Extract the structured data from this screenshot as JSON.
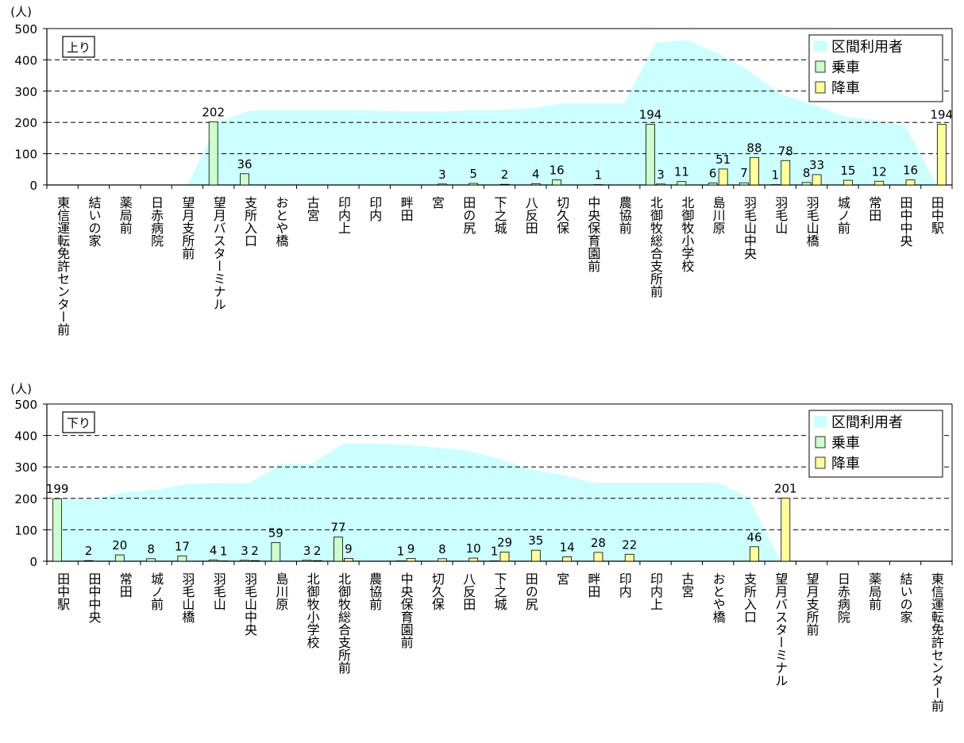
{
  "colors": {
    "area": "#ccffff",
    "boarding": "#ccffcc",
    "alighting": "#ffff99",
    "grid": "#000000"
  },
  "chart_data": [
    {
      "type": "bar",
      "direction_label": "上り",
      "unit_label": "(人)",
      "ylim": [
        0,
        500
      ],
      "yticks": [
        0,
        100,
        200,
        300,
        400,
        500
      ],
      "grid": "dashed",
      "legend_position": "top-right",
      "categories": [
        "東信運転免許センター前",
        "結いの家",
        "薬局前",
        "日赤病院",
        "望月支所前",
        "望月バスターミナル",
        "支所入口",
        "おとや橋",
        "古宮",
        "印内上",
        "印内",
        "畔田",
        "宮",
        "田の尻",
        "下之城",
        "八反田",
        "切久保",
        "中央保育園前",
        "農協前",
        "北御牧総合支所前",
        "北御牧小学校",
        "島川原",
        "羽毛山中央",
        "羽毛山",
        "羽毛山橋",
        "城ノ前",
        "常田",
        "田中中央",
        "田中駅"
      ],
      "series": [
        {
          "name": "区間利用者",
          "kind": "area",
          "values": [
            0,
            0,
            0,
            0,
            0,
            202,
            238,
            238,
            238,
            238,
            238,
            235,
            235,
            238,
            240,
            245,
            261,
            261,
            261,
            455,
            463,
            420,
            365,
            290,
            260,
            220,
            208,
            190,
            0
          ]
        },
        {
          "name": "乗車",
          "kind": "bar",
          "values": [
            0,
            0,
            0,
            0,
            0,
            202,
            36,
            0,
            0,
            0,
            0,
            0,
            0,
            0,
            0,
            0,
            16,
            0,
            0,
            194,
            11,
            6,
            7,
            1,
            8,
            0,
            0,
            0,
            0
          ]
        },
        {
          "name": "降車",
          "kind": "bar",
          "values": [
            0,
            0,
            0,
            0,
            0,
            0,
            0,
            0,
            0,
            0,
            0,
            0,
            3,
            5,
            2,
            4,
            0,
            1,
            0,
            3,
            0,
            51,
            88,
            78,
            33,
            15,
            12,
            16,
            194
          ]
        }
      ],
      "data_labels": [
        {
          "i": 5,
          "s": "b",
          "text": "202"
        },
        {
          "i": 6,
          "s": "b",
          "text": "36"
        },
        {
          "i": 12,
          "s": "a",
          "text": "3"
        },
        {
          "i": 13,
          "s": "a",
          "text": "5"
        },
        {
          "i": 14,
          "s": "a",
          "text": "2"
        },
        {
          "i": 15,
          "s": "a",
          "text": "4"
        },
        {
          "i": 16,
          "s": "b",
          "text": "16"
        },
        {
          "i": 17,
          "s": "a",
          "text": "1"
        },
        {
          "i": 19,
          "s": "b",
          "text": "194"
        },
        {
          "i": 19,
          "s": "a",
          "text": "3"
        },
        {
          "i": 20,
          "s": "b",
          "text": "11"
        },
        {
          "i": 21,
          "s": "b",
          "text": "6"
        },
        {
          "i": 21,
          "s": "a",
          "text": "51"
        },
        {
          "i": 22,
          "s": "b",
          "text": "7"
        },
        {
          "i": 22,
          "s": "a",
          "text": "88"
        },
        {
          "i": 23,
          "s": "b",
          "text": "1"
        },
        {
          "i": 23,
          "s": "a",
          "text": "78"
        },
        {
          "i": 24,
          "s": "b",
          "text": "8"
        },
        {
          "i": 24,
          "s": "a",
          "text": "33"
        },
        {
          "i": 25,
          "s": "a",
          "text": "15"
        },
        {
          "i": 26,
          "s": "a",
          "text": "12"
        },
        {
          "i": 27,
          "s": "a",
          "text": "16"
        },
        {
          "i": 28,
          "s": "a",
          "text": "194"
        }
      ]
    },
    {
      "type": "bar",
      "direction_label": "下り",
      "unit_label": "(人)",
      "ylim": [
        0,
        500
      ],
      "yticks": [
        0,
        100,
        200,
        300,
        400,
        500
      ],
      "grid": "dashed",
      "legend_position": "top-right",
      "categories": [
        "田中駅",
        "田中中央",
        "常田",
        "城ノ前",
        "羽毛山橋",
        "羽毛山",
        "羽毛山中央",
        "島川原",
        "北御牧小学校",
        "北御牧総合支所前",
        "農協前",
        "中央保育園前",
        "切久保",
        "八反田",
        "下之城",
        "田の尻",
        "宮",
        "畔田",
        "印内",
        "印内上",
        "古宮",
        "おとや橋",
        "支所入口",
        "望月バスターミナル",
        "望月支所前",
        "日赤病院",
        "薬局前",
        "結いの家",
        "東信運転免許センター前"
      ],
      "series": [
        {
          "name": "区間利用者",
          "kind": "area",
          "values": [
            199,
            199,
            220,
            228,
            245,
            249,
            249,
            310,
            310,
            375,
            375,
            370,
            362,
            352,
            325,
            292,
            275,
            250,
            250,
            250,
            250,
            250,
            200,
            0,
            0,
            0,
            0,
            0,
            0
          ]
        },
        {
          "name": "乗車",
          "kind": "bar",
          "values": [
            199,
            2,
            20,
            8,
            17,
            4,
            3,
            59,
            3,
            77,
            0,
            1,
            0,
            0,
            1,
            0,
            0,
            0,
            0,
            0,
            0,
            0,
            0,
            0,
            0,
            0,
            0,
            0,
            0
          ]
        },
        {
          "name": "降車",
          "kind": "bar",
          "values": [
            0,
            0,
            0,
            0,
            0,
            1,
            2,
            0,
            2,
            9,
            0,
            9,
            8,
            10,
            29,
            35,
            14,
            28,
            22,
            0,
            0,
            0,
            46,
            201,
            0,
            0,
            0,
            0,
            0
          ]
        }
      ],
      "data_labels": [
        {
          "i": 0,
          "s": "b",
          "text": "199"
        },
        {
          "i": 1,
          "s": "b",
          "text": "2"
        },
        {
          "i": 2,
          "s": "b",
          "text": "20"
        },
        {
          "i": 3,
          "s": "b",
          "text": "8"
        },
        {
          "i": 4,
          "s": "b",
          "text": "17"
        },
        {
          "i": 5,
          "s": "b",
          "text": "4"
        },
        {
          "i": 5,
          "s": "a",
          "text": "1"
        },
        {
          "i": 6,
          "s": "b",
          "text": "3"
        },
        {
          "i": 6,
          "s": "a",
          "text": "2"
        },
        {
          "i": 7,
          "s": "b",
          "text": "59"
        },
        {
          "i": 8,
          "s": "b",
          "text": "3"
        },
        {
          "i": 8,
          "s": "a",
          "text": "2"
        },
        {
          "i": 9,
          "s": "b",
          "text": "77"
        },
        {
          "i": 9,
          "s": "a",
          "text": "9"
        },
        {
          "i": 11,
          "s": "b",
          "text": "1"
        },
        {
          "i": 11,
          "s": "a",
          "text": "9"
        },
        {
          "i": 12,
          "s": "a",
          "text": "8"
        },
        {
          "i": 13,
          "s": "a",
          "text": "10"
        },
        {
          "i": 14,
          "s": "b",
          "text": "1"
        },
        {
          "i": 14,
          "s": "a",
          "text": "29"
        },
        {
          "i": 15,
          "s": "a",
          "text": "35"
        },
        {
          "i": 16,
          "s": "a",
          "text": "14"
        },
        {
          "i": 17,
          "s": "a",
          "text": "28"
        },
        {
          "i": 18,
          "s": "a",
          "text": "22"
        },
        {
          "i": 22,
          "s": "a",
          "text": "46"
        },
        {
          "i": 23,
          "s": "a",
          "text": "201"
        }
      ]
    }
  ]
}
